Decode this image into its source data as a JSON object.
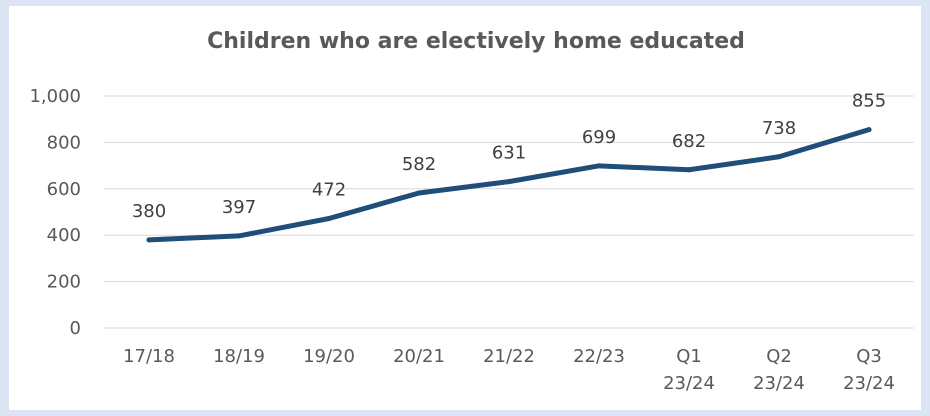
{
  "chart_data": {
    "type": "line",
    "title": "Children who are electively home educated",
    "xlabel": "",
    "ylabel": "",
    "categories": [
      "17/18",
      "18/19",
      "19/20",
      "20/21",
      "21/22",
      "22/23",
      "Q1 23/24",
      "Q2 23/24",
      "Q3 23/24"
    ],
    "series": [
      {
        "values": [
          380,
          397,
          472,
          582,
          631,
          699,
          682,
          738,
          855
        ],
        "data_labels": [
          "380",
          "397",
          "472",
          "582",
          "631",
          "699",
          "682",
          "738",
          "855"
        ],
        "color": "#1f4e79"
      }
    ],
    "y_ticks": [
      0,
      200,
      400,
      600,
      800,
      1000
    ],
    "y_tick_labels": [
      "0",
      "200",
      "400",
      "600",
      "800",
      "1,000"
    ],
    "ylim": [
      0,
      1000
    ],
    "grid": true,
    "legend": "none"
  }
}
